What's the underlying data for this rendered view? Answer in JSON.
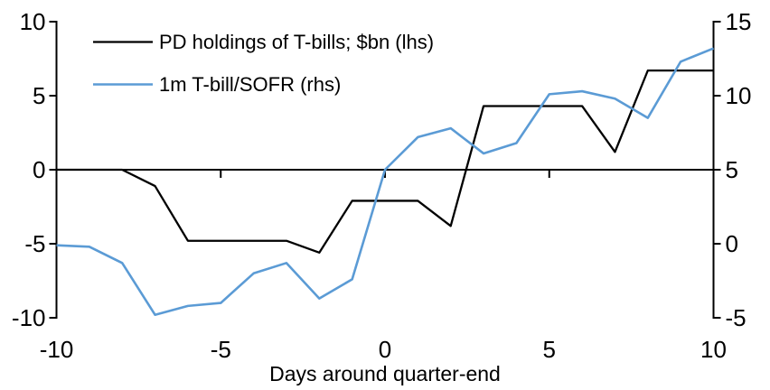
{
  "chart_data": {
    "type": "line",
    "title": "",
    "xlabel": "Days around quarter-end",
    "ylabel_left": "",
    "ylabel_right": "",
    "x": [
      -10,
      -9,
      -8,
      -7,
      -6,
      -5,
      -4,
      -3,
      -2,
      -1,
      0,
      1,
      2,
      3,
      4,
      5,
      6,
      7,
      8,
      9,
      10
    ],
    "series": [
      {
        "name": "PD holdings of T-bills; $bn (lhs)",
        "axis": "left",
        "color": "#000000",
        "values": [
          0,
          0,
          0,
          -1.1,
          -4.8,
          -4.8,
          -4.8,
          -4.8,
          -5.6,
          -2.1,
          -2.1,
          -2.1,
          -3.8,
          4.3,
          4.3,
          4.3,
          4.3,
          1.2,
          6.7,
          6.7,
          6.7
        ]
      },
      {
        "name": "1m T-bill/SOFR (rhs)",
        "axis": "right",
        "color": "#5B9BD5",
        "values": [
          -0.1,
          -0.2,
          -1.3,
          -4.8,
          -4.2,
          -4.0,
          -2.0,
          -1.3,
          -3.7,
          -2.4,
          5.0,
          7.2,
          7.8,
          6.1,
          6.8,
          10.1,
          10.3,
          9.8,
          8.5,
          12.3,
          13.2
        ]
      }
    ],
    "left_axis": {
      "range": [
        -10,
        10
      ],
      "ticks": [
        10,
        5,
        0,
        -5,
        -10
      ]
    },
    "right_axis": {
      "range": [
        -5,
        15
      ],
      "ticks": [
        15,
        10,
        5,
        0,
        -5
      ]
    },
    "x_axis": {
      "range": [
        -10,
        10
      ],
      "tick_labels": [
        -10,
        -5,
        0,
        5,
        10
      ],
      "tick_marks": [
        -5,
        0,
        5
      ]
    },
    "legend_position": "top-left",
    "grid": false,
    "zero_line": true
  },
  "colors": {
    "background": "#ffffff",
    "axis": "#000000",
    "text": "#000000",
    "series_black": "#000000",
    "series_blue": "#5B9BD5"
  }
}
